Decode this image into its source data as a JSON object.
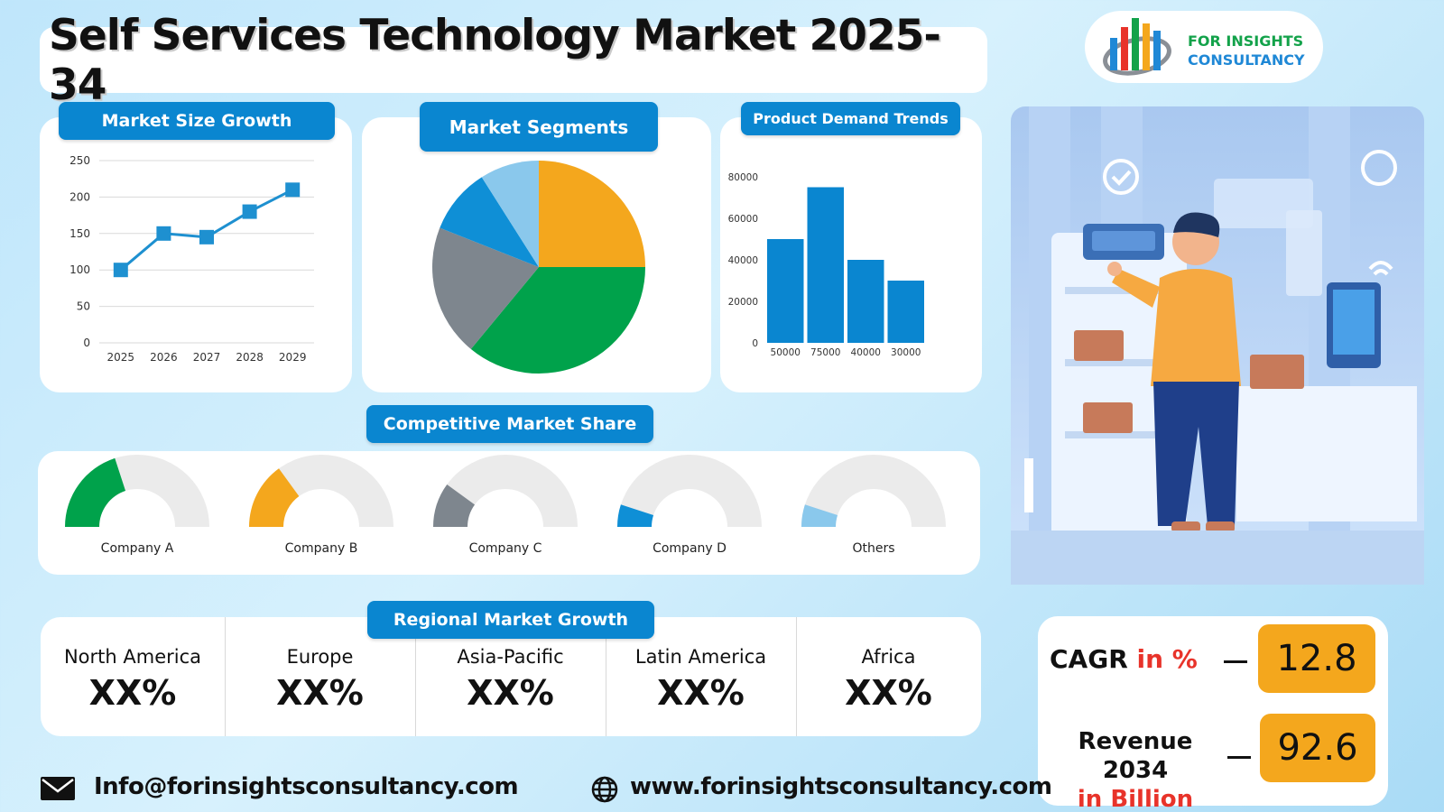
{
  "title": "Self Services Technology Market 2025-34",
  "logo": {
    "line1": "FOR INSIGHTS",
    "line2": "CONSULTANCY",
    "icon": "bar-chart-globe-logo"
  },
  "sections": {
    "market_size": "Market Size Growth",
    "segments": "Market Segments",
    "demand": "Product Demand Trends",
    "competitive": "Competitive Market Share",
    "regional": "Regional Market Growth"
  },
  "colors": {
    "accent_blue": "#0a86d0",
    "orange": "#f4a71d",
    "green": "#00a24b",
    "gray": "#7e868e",
    "blue": "#0f8fd6",
    "light_blue": "#8ac8ec",
    "red": "#e8332a"
  },
  "chart_data": [
    {
      "type": "line",
      "title": "Market Size Growth",
      "x": [
        "2025",
        "2026",
        "2027",
        "2028",
        "2029"
      ],
      "values": [
        100,
        150,
        145,
        180,
        210
      ],
      "ylim": [
        0,
        250
      ],
      "yticks": [
        0,
        50,
        100,
        150,
        200,
        250
      ],
      "grid": true,
      "color": "#1e90d0"
    },
    {
      "type": "pie",
      "title": "Market Segments",
      "slices": [
        {
          "value": 25,
          "color": "#f4a71d"
        },
        {
          "value": 36,
          "color": "#00a24b"
        },
        {
          "value": 20,
          "color": "#7e868e"
        },
        {
          "value": 10,
          "color": "#0f8fd6"
        },
        {
          "value": 9,
          "color": "#8ac8ec"
        }
      ]
    },
    {
      "type": "bar",
      "title": "Product Demand Trends",
      "categories": [
        "50000",
        "75000",
        "40000",
        "30000"
      ],
      "values": [
        50000,
        75000,
        40000,
        30000
      ],
      "ylim": [
        0,
        80000
      ],
      "yticks": [
        0,
        20000,
        40000,
        60000,
        80000
      ],
      "color": "#0a86d0"
    },
    {
      "type": "gauge",
      "title": "Competitive Market Share",
      "items": [
        {
          "label": "Company A",
          "value": 0.4,
          "color": "#00a24b"
        },
        {
          "label": "Company B",
          "value": 0.3,
          "color": "#f4a71d"
        },
        {
          "label": "Company C",
          "value": 0.2,
          "color": "#7e868e"
        },
        {
          "label": "Company D",
          "value": 0.1,
          "color": "#0f8fd6"
        },
        {
          "label": "Others",
          "value": 0.1,
          "color": "#8ac8ec"
        }
      ]
    }
  ],
  "regions": [
    {
      "name": "North America",
      "value": "XX%"
    },
    {
      "name": "Europe",
      "value": "XX%"
    },
    {
      "name": "Asia-Pacific",
      "value": "XX%"
    },
    {
      "name": "Latin America",
      "value": "XX%"
    },
    {
      "name": "Africa",
      "value": "XX%"
    }
  ],
  "stats": {
    "cagr_label": "CAGR",
    "cagr_unit": "in %",
    "cagr_value": "12.8",
    "revenue_label": "Revenue 2034",
    "revenue_unit": "in Billion",
    "revenue_value": "92.6"
  },
  "footer": {
    "email": "Info@forinsightsconsultancy.com",
    "website": "www.forinsightsconsultancy.com",
    "email_icon": "envelope-icon",
    "web_icon": "globe-icon"
  },
  "illustration": "person-at-self-service-kiosk-illustration"
}
